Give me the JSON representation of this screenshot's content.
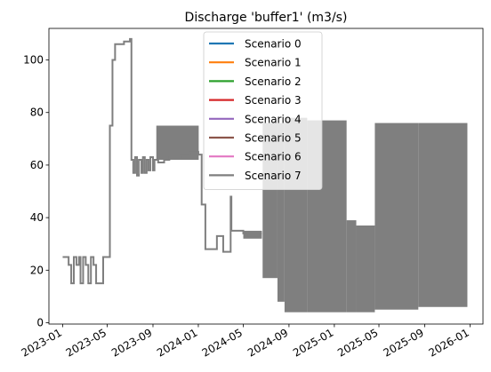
{
  "chart_data": {
    "type": "line",
    "title": "Discharge 'buffer1' (m3/s)",
    "xlabel": "",
    "ylabel": "",
    "x_range": [
      "2022-11-25",
      "2026-02-05"
    ],
    "ylim": [
      -0.5,
      112
    ],
    "x_ticks": [
      "2023-01",
      "2023-05",
      "2023-09",
      "2024-01",
      "2024-05",
      "2024-09",
      "2025-01",
      "2025-05",
      "2025-09",
      "2026-01"
    ],
    "y_ticks": [
      0,
      20,
      40,
      60,
      80,
      100
    ],
    "grid": false,
    "legend_position": "top-center",
    "series_note": "All eight scenarios overlap; only the last-drawn (Scenario 7) is visible.",
    "series": [
      {
        "name": "Scenario 0",
        "color": "#1f77b4"
      },
      {
        "name": "Scenario 1",
        "color": "#ff7f0e"
      },
      {
        "name": "Scenario 2",
        "color": "#2ca02c"
      },
      {
        "name": "Scenario 3",
        "color": "#d62728"
      },
      {
        "name": "Scenario 4",
        "color": "#9467bd"
      },
      {
        "name": "Scenario 5",
        "color": "#8c564b"
      },
      {
        "name": "Scenario 6",
        "color": "#e377c2"
      },
      {
        "name": "Scenario 7",
        "color": "#7f7f7f"
      }
    ],
    "steps": [
      [
        "2023-01-01",
        25
      ],
      [
        "2023-01-17",
        22
      ],
      [
        "2023-01-24",
        15
      ],
      [
        "2023-01-31",
        25
      ],
      [
        "2023-02-07",
        22
      ],
      [
        "2023-02-14",
        25
      ],
      [
        "2023-02-18",
        15
      ],
      [
        "2023-02-25",
        25
      ],
      [
        "2023-03-04",
        22
      ],
      [
        "2023-03-11",
        15
      ],
      [
        "2023-03-18",
        25
      ],
      [
        "2023-03-25",
        22
      ],
      [
        "2023-04-01",
        15
      ],
      [
        "2023-04-08",
        15
      ],
      [
        "2023-04-20",
        25
      ],
      [
        "2023-05-08",
        75
      ],
      [
        "2023-05-15",
        100
      ],
      [
        "2023-05-22",
        106
      ],
      [
        "2023-06-15",
        107
      ],
      [
        "2023-07-01",
        108
      ],
      [
        "2023-07-05",
        62
      ],
      [
        "2023-07-10",
        57
      ],
      [
        "2023-07-15",
        63
      ],
      [
        "2023-07-20",
        56
      ],
      [
        "2023-07-25",
        62
      ],
      [
        "2023-08-01",
        57
      ],
      [
        "2023-08-05",
        63
      ],
      [
        "2023-08-10",
        57
      ],
      [
        "2023-08-15",
        62
      ],
      [
        "2023-08-20",
        58
      ],
      [
        "2023-08-25",
        63
      ],
      [
        "2023-09-01",
        58
      ],
      [
        "2023-09-05",
        62
      ],
      [
        "2023-09-15",
        61
      ],
      [
        "2023-10-01",
        62
      ],
      [
        "2023-10-15",
        63
      ],
      [
        "2023-11-01",
        63
      ],
      [
        "2023-11-15",
        64
      ],
      [
        "2023-12-01",
        64
      ],
      [
        "2023-12-10",
        65
      ],
      [
        "2024-01-01",
        64
      ],
      [
        "2024-01-10",
        45
      ],
      [
        "2024-01-20",
        28
      ],
      [
        "2024-02-15",
        28
      ],
      [
        "2024-02-20",
        33
      ],
      [
        "2024-03-01",
        33
      ],
      [
        "2024-03-08",
        27
      ],
      [
        "2024-03-25",
        27
      ],
      [
        "2024-03-28",
        48
      ],
      [
        "2024-03-30",
        35
      ],
      [
        "2024-04-15",
        35
      ],
      [
        "2024-05-01",
        34
      ],
      [
        "2024-05-15",
        33
      ],
      [
        "2024-06-10",
        34
      ],
      [
        "2024-06-20",
        34
      ]
    ],
    "osc_zones": [
      {
        "start": "2023-09-10",
        "end": "2024-01-02",
        "low": 62,
        "high": 75
      },
      {
        "start": "2024-05-01",
        "end": "2024-06-20",
        "low": 32,
        "high": 35
      },
      {
        "start": "2024-06-22",
        "end": "2024-08-01",
        "low": 17,
        "high": 76
      },
      {
        "start": "2024-08-01",
        "end": "2024-08-20",
        "low": 8,
        "high": 76
      },
      {
        "start": "2024-08-20",
        "end": "2024-10-20",
        "low": 4,
        "high": 78
      },
      {
        "start": "2024-10-20",
        "end": "2025-02-03",
        "low": 4,
        "high": 77
      },
      {
        "start": "2025-02-03",
        "end": "2025-03-01",
        "low": 4,
        "high": 39
      },
      {
        "start": "2025-03-01",
        "end": "2025-04-20",
        "low": 4,
        "high": 37
      },
      {
        "start": "2025-04-20",
        "end": "2025-08-15",
        "low": 5,
        "high": 76
      },
      {
        "start": "2025-08-15",
        "end": "2025-12-25",
        "low": 6,
        "high": 76
      }
    ]
  }
}
